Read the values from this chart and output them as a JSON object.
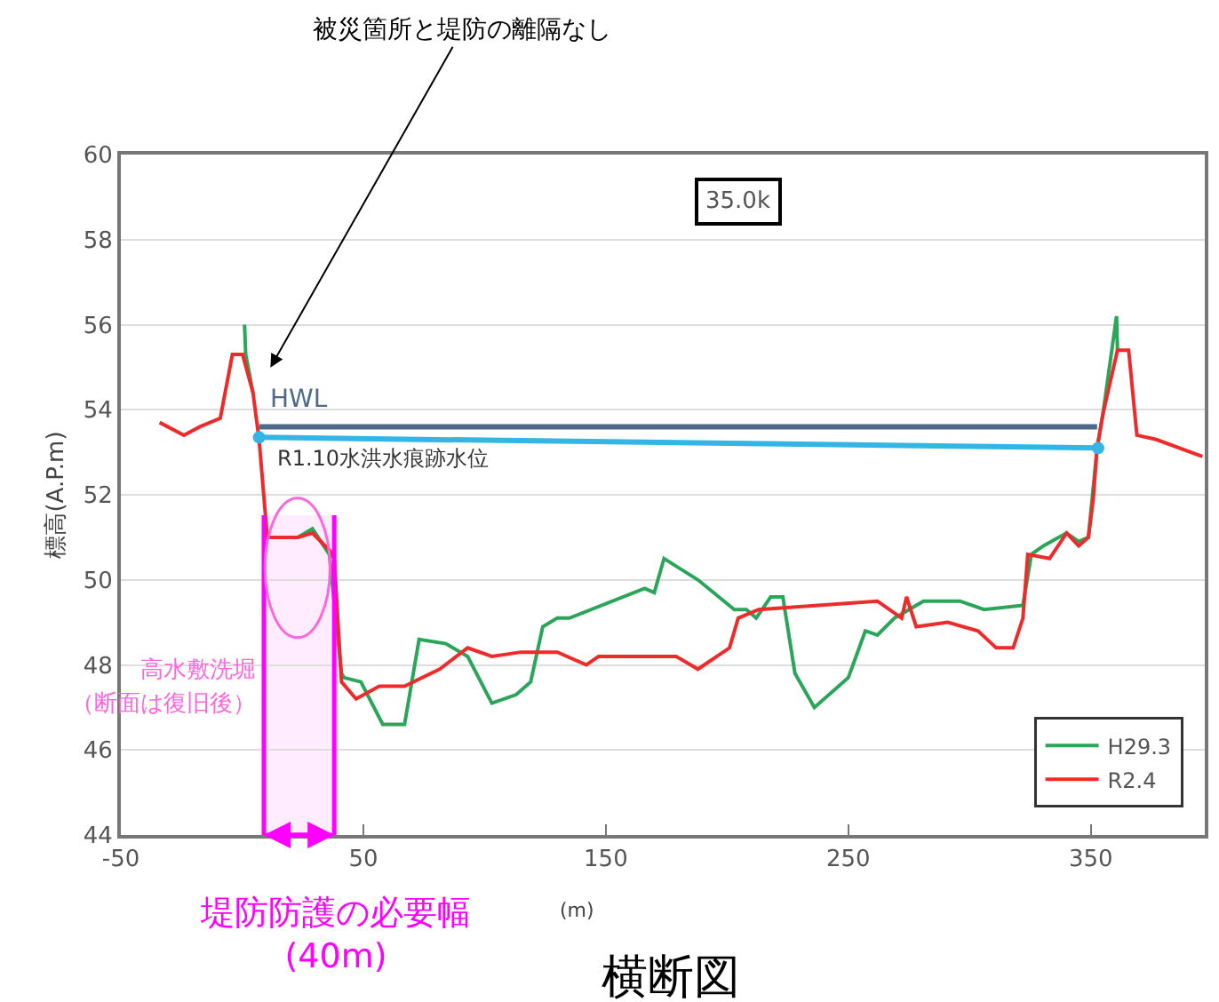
{
  "chart_data": {
    "type": "line",
    "title": "横断図",
    "xlabel": "(m)",
    "ylabel": "標高(A.P.m)",
    "xlim": [
      -50,
      397
    ],
    "xticks": [
      -50,
      50,
      150,
      250,
      350
    ],
    "ylim": [
      44,
      60
    ],
    "yticks": [
      44,
      46,
      48,
      50,
      52,
      54,
      56,
      58,
      60
    ],
    "grid": "y",
    "legend": "bottom right",
    "marker": "none",
    "line_style": "solid",
    "series": [
      {
        "name": "H29.3",
        "color": "#2aa55a",
        "x": [
          1,
          1.5,
          4.5,
          7,
          10.4,
          23,
          29,
          36,
          41,
          42,
          49,
          58,
          67,
          73,
          84,
          93,
          103,
          113,
          119,
          124,
          130,
          135,
          166,
          170,
          174,
          188,
          203,
          208,
          212,
          218,
          223,
          228,
          236,
          250,
          257,
          262,
          269,
          281,
          296,
          306,
          322,
          325.5,
          330.5,
          340,
          345,
          349,
          352.6,
          355,
          360.6,
          361
        ],
        "values": [
          56.0,
          55.3,
          54.4,
          null,
          null,
          51.0,
          51.2,
          50.6,
          47.8,
          47.7,
          47.6,
          46.6,
          46.6,
          48.6,
          48.5,
          48.2,
          47.1,
          47.3,
          47.6,
          48.9,
          49.1,
          49.1,
          49.8,
          49.7,
          50.5,
          50.0,
          49.3,
          49.3,
          49.1,
          49.6,
          49.6,
          47.8,
          47.0,
          47.7,
          48.8,
          48.7,
          49.1,
          49.5,
          49.5,
          49.3,
          49.4,
          50.6,
          50.8,
          51.1,
          50.9,
          51.0,
          53.1,
          53.9,
          56.2,
          55.4
        ]
      },
      {
        "name": "R2.4",
        "color": "#ee2b2b",
        "x": [
          -34,
          -24,
          -17.4,
          -9,
          -4,
          0.2,
          4.5,
          7,
          10.4,
          23,
          29,
          36,
          38,
          41,
          47,
          56.6,
          67,
          81.5,
          93,
          103,
          115,
          130,
          142,
          147,
          164,
          179,
          188,
          201,
          204.6,
          213,
          262,
          272,
          274,
          278,
          291,
          303.5,
          311,
          318,
          322,
          324,
          333,
          340,
          345,
          349,
          351,
          352.6,
          355,
          361,
          365.6,
          369,
          377,
          396
        ],
        "values": [
          53.7,
          53.4,
          53.6,
          53.8,
          55.3,
          55.3,
          54.4,
          53.3,
          51.0,
          51.0,
          51.1,
          50.7,
          50.5,
          47.6,
          47.2,
          47.5,
          47.5,
          47.9,
          48.4,
          48.2,
          48.3,
          48.3,
          48.0,
          48.2,
          48.2,
          48.2,
          47.9,
          48.4,
          49.1,
          49.3,
          49.5,
          49.1,
          49.6,
          48.9,
          49.0,
          48.8,
          48.4,
          48.4,
          49.1,
          50.6,
          50.5,
          51.1,
          50.8,
          51.0,
          51.9,
          53.1,
          53.9,
          55.4,
          55.4,
          53.4,
          53.3,
          52.9
        ]
      },
      {
        "name": "HWL",
        "color": "#4f6b8a",
        "x": [
          7,
          352.6
        ],
        "values": [
          53.6,
          53.6
        ]
      },
      {
        "name": "R1.10水洪水痕跡水位",
        "color": "#33b5e5",
        "marker": "circle",
        "x": [
          7,
          353
        ],
        "values": [
          53.35,
          53.1
        ]
      }
    ],
    "bands": [
      {
        "axis": "x",
        "from": 9,
        "to": 38,
        "color": "#ff00ff",
        "label": "堤防防護の必要幅\n(40m)"
      }
    ],
    "annotations": [
      "被災箇所と堤防の離隔なし",
      "高水敷洗堀",
      "（断面は復旧後）",
      "35.0k"
    ]
  }
}
